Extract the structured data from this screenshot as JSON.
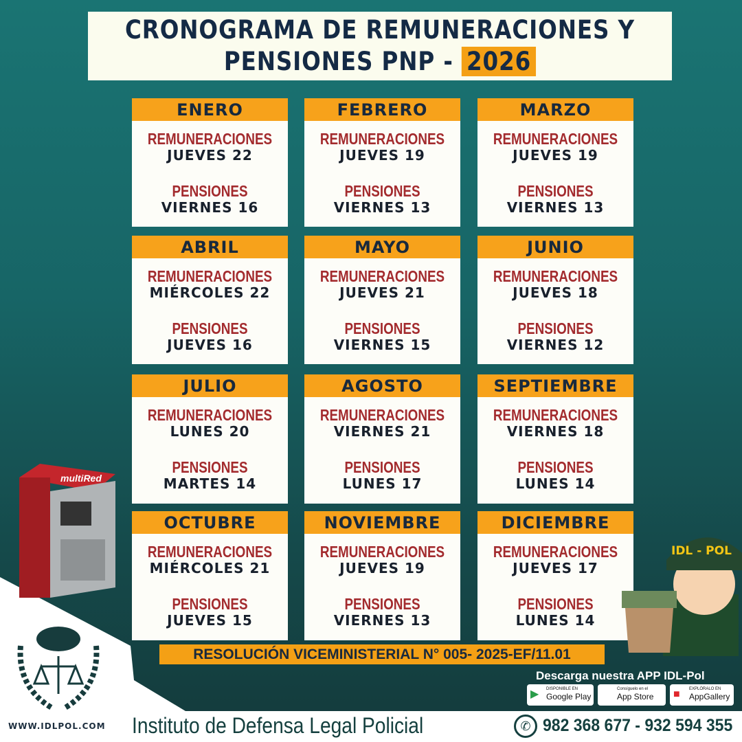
{
  "title": {
    "line1": "CRONOGRAMA DE REMUNERACIONES Y",
    "line2": "PENSIONES PNP -",
    "year": "2026"
  },
  "labels": {
    "remuneraciones": "REMUNERACIONES",
    "pensiones": "PENSIONES"
  },
  "months": [
    {
      "name": "ENERO",
      "rem": "JUEVES 22",
      "pen": "VIERNES 16"
    },
    {
      "name": "FEBRERO",
      "rem": "JUEVES 19",
      "pen": "VIERNES 13"
    },
    {
      "name": "MARZO",
      "rem": "JUEVES 19",
      "pen": "VIERNES 13"
    },
    {
      "name": "ABRIL",
      "rem": "MIÉRCOLES 22",
      "pen": "JUEVES 16"
    },
    {
      "name": "MAYO",
      "rem": "JUEVES 21",
      "pen": "VIERNES 15"
    },
    {
      "name": "JUNIO",
      "rem": "JUEVES 18",
      "pen": "VIERNES 12"
    },
    {
      "name": "JULIO",
      "rem": "LUNES 20",
      "pen": "MARTES 14"
    },
    {
      "name": "AGOSTO",
      "rem": "VIERNES 21",
      "pen": "LUNES 17"
    },
    {
      "name": "SEPTIEMBRE",
      "rem": "VIERNES 18",
      "pen": "LUNES 14"
    },
    {
      "name": "OCTUBRE",
      "rem": "MIÉRCOLES 21",
      "pen": "JUEVES 15"
    },
    {
      "name": "NOVIEMBRE",
      "rem": "JUEVES 19",
      "pen": "VIERNES 13"
    },
    {
      "name": "DICIEMBRE",
      "rem": "JUEVES 17",
      "pen": "LUNES 14"
    }
  ],
  "resolution": "RESOLUCIÓN VICEMINISTERIAL N° 005- 2025-EF/11.01",
  "download": "Descarga nuestra APP IDL-Pol",
  "stores": [
    {
      "small": "DISPONIBLE EN",
      "name": "Google Play",
      "icon": "google-play-icon"
    },
    {
      "small": "Consíguelo en el",
      "name": "App Store",
      "icon": "apple-icon"
    },
    {
      "small": "EXPLÓRALO EN",
      "name": "AppGallery",
      "icon": "huawei-icon"
    }
  ],
  "website": "WWW.IDLPOL.COM",
  "institute": "Instituto de Defensa Legal Policial",
  "phones": "982 368 677  -  932 594 355",
  "atm_brand": "multiRed",
  "mascot_cap": "IDL - POL",
  "colors": {
    "accent": "#f4a015",
    "label_red": "#a32b2e",
    "navy": "#142a45",
    "teal": "#1a7473"
  }
}
